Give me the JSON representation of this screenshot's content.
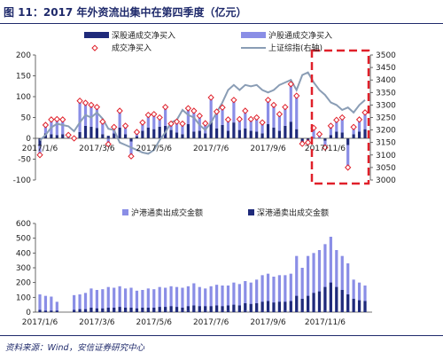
{
  "header": {
    "title": "图 11：2017 年外资流出集中在第四季度（亿元）"
  },
  "footer": {
    "source": "资料来源：Wind，安信证券研究中心"
  },
  "colors": {
    "navy": "#1f2a7a",
    "lavender": "#8a8ee6",
    "marker": "#e0202a",
    "index_line": "#8a9db5",
    "highlight": "#e0202a"
  },
  "chart_data": [
    {
      "type": "bar",
      "stacked": true,
      "legend": {
        "placement": "top",
        "items": [
          {
            "key": "sz",
            "label": "深股通成交净买入"
          },
          {
            "key": "hu",
            "label": "沪股通成交净买入"
          },
          {
            "key": "net",
            "label": "成交净买入"
          },
          {
            "key": "idx",
            "label": "上证综指(右轴)"
          }
        ]
      },
      "x_tick_labels": [
        "2017/1/6",
        "2017/3/6",
        "2017/5/6",
        "2017/7/6",
        "2017/9/6",
        "2017/11/6"
      ],
      "y_left": {
        "range": [
          -100,
          200
        ],
        "ticks": [
          "200",
          "150",
          "100",
          "50",
          "0",
          "-50",
          "-100"
        ]
      },
      "y_right": {
        "range": [
          3000,
          3500
        ],
        "ticks": [
          "3500",
          "3450",
          "3400",
          "3350",
          "3300",
          "3250",
          "3200",
          "3150",
          "3100",
          "3050",
          "3000"
        ]
      },
      "series": [
        {
          "name": "深股通成交净买入",
          "values": [
            -18,
            12,
            10,
            8,
            10,
            0,
            0,
            15,
            30,
            28,
            25,
            10,
            6,
            12,
            26,
            10,
            -8,
            5,
            18,
            26,
            22,
            28,
            30,
            20,
            14,
            10,
            34,
            16,
            18,
            12,
            40,
            24,
            32,
            18,
            38,
            20,
            24,
            18,
            16,
            12,
            34,
            26,
            18,
            30,
            40,
            22,
            -10,
            -8,
            0,
            0,
            -6,
            8,
            16,
            14,
            -16,
            10,
            16,
            22
          ]
        },
        {
          "name": "沪股通成交净买入",
          "values": [
            -22,
            20,
            35,
            38,
            35,
            8,
            0,
            75,
            55,
            52,
            50,
            30,
            -20,
            15,
            40,
            20,
            -35,
            10,
            20,
            30,
            36,
            22,
            45,
            15,
            26,
            25,
            38,
            50,
            36,
            24,
            58,
            40,
            42,
            27,
            54,
            26,
            42,
            28,
            34,
            26,
            58,
            54,
            40,
            45,
            90,
            80,
            -3,
            -2,
            25,
            10,
            -16,
            22,
            28,
            36,
            -54,
            17,
            29,
            40
          ]
        },
        {
          "name": "成交净买入",
          "values": [
            -40,
            32,
            45,
            46,
            45,
            8,
            0,
            90,
            85,
            80,
            75,
            40,
            -14,
            27,
            66,
            30,
            -43,
            15,
            38,
            56,
            58,
            50,
            75,
            35,
            40,
            35,
            72,
            66,
            54,
            36,
            98,
            64,
            74,
            45,
            92,
            46,
            66,
            46,
            50,
            38,
            92,
            80,
            58,
            75,
            130,
            102,
            -13,
            -10,
            25,
            10,
            -22,
            30,
            44,
            50,
            -70,
            27,
            45,
            62
          ]
        },
        {
          "name": "上证综指(右轴)",
          "values": [
            3158,
            3180,
            3210,
            3225,
            3220,
            3215,
            3195,
            3230,
            3260,
            3250,
            3270,
            3245,
            3205,
            3200,
            3150,
            3140,
            3130,
            3120,
            3110,
            3105,
            3120,
            3160,
            3190,
            3230,
            3240,
            3280,
            3260,
            3250,
            3220,
            3200,
            3230,
            3270,
            3310,
            3360,
            3380,
            3360,
            3380,
            3375,
            3380,
            3360,
            3350,
            3360,
            3380,
            3390,
            3400,
            3360,
            3420,
            3430,
            3390,
            3360,
            3340,
            3310,
            3300,
            3280,
            3290,
            3270,
            3300,
            3320
          ]
        }
      ]
    },
    {
      "type": "bar",
      "stacked": false,
      "legend": {
        "placement": "top",
        "items": [
          {
            "key": "hg",
            "label": "沪港通卖出成交金额"
          },
          {
            "key": "sg",
            "label": "深港通卖出成交金额"
          }
        ]
      },
      "x_tick_labels": [
        "2017/1/6",
        "2017/3/6",
        "2017/5/6",
        "2017/7/6",
        "2017/9/6",
        "2017/11/6"
      ],
      "y_left": {
        "range": [
          0,
          600
        ],
        "ticks": [
          "600",
          "500",
          "400",
          "300",
          "200",
          "100",
          "0"
        ]
      },
      "series": [
        {
          "name": "沪港通卖出成交金额",
          "values": [
            120,
            110,
            105,
            70,
            0,
            0,
            115,
            120,
            130,
            160,
            150,
            155,
            170,
            165,
            175,
            160,
            165,
            145,
            150,
            160,
            155,
            170,
            165,
            175,
            170,
            165,
            175,
            195,
            170,
            160,
            175,
            185,
            180,
            180,
            200,
            190,
            210,
            200,
            220,
            250,
            260,
            240,
            250,
            250,
            260,
            380,
            300,
            380,
            400,
            420,
            460,
            510,
            420,
            380,
            330,
            220,
            200,
            180
          ]
        },
        {
          "name": "深港通卖出成交金额",
          "values": [
            15,
            10,
            10,
            10,
            0,
            0,
            15,
            20,
            20,
            30,
            25,
            25,
            30,
            30,
            35,
            30,
            30,
            25,
            30,
            30,
            30,
            35,
            35,
            40,
            35,
            30,
            40,
            45,
            40,
            40,
            40,
            45,
            40,
            45,
            50,
            45,
            60,
            55,
            60,
            70,
            75,
            65,
            70,
            70,
            75,
            110,
            90,
            110,
            130,
            140,
            170,
            200,
            170,
            150,
            120,
            90,
            80,
            75
          ]
        }
      ]
    }
  ]
}
